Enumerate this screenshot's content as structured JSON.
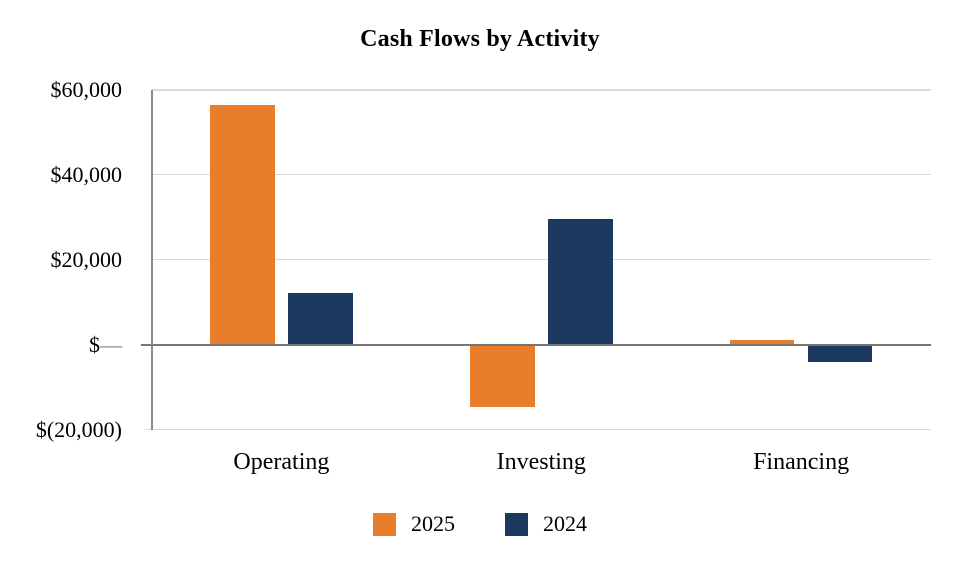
{
  "chart_data": {
    "type": "bar",
    "title": "Cash Flows by Activity",
    "categories": [
      "Operating",
      "Investing",
      "Financing"
    ],
    "series": [
      {
        "name": "2025",
        "color": "#E87E2B",
        "values": [
          56400,
          -14700,
          1000
        ]
      },
      {
        "name": "2024",
        "color": "#1C3A5F",
        "values": [
          12100,
          29700,
          -4000
        ]
      }
    ],
    "ylim": [
      -20000,
      60000
    ],
    "y_ticks": [
      {
        "value": 60000,
        "label": "$60,000"
      },
      {
        "value": 40000,
        "label": "$40,000"
      },
      {
        "value": 20000,
        "label": "$20,000"
      },
      {
        "value": 0,
        "label": "$",
        "suffix": "—"
      },
      {
        "value": -20000,
        "label": "$(20,000)"
      }
    ],
    "gridline_values": [
      60000,
      40000,
      20000
    ],
    "baseline_value": -20000,
    "legend_position": "bottom",
    "grid_on": true,
    "colors": {
      "gridline": "#DADADA",
      "axis": "#8A8A8A",
      "zero_line": "#757575",
      "tick_dash": "#808080"
    }
  }
}
